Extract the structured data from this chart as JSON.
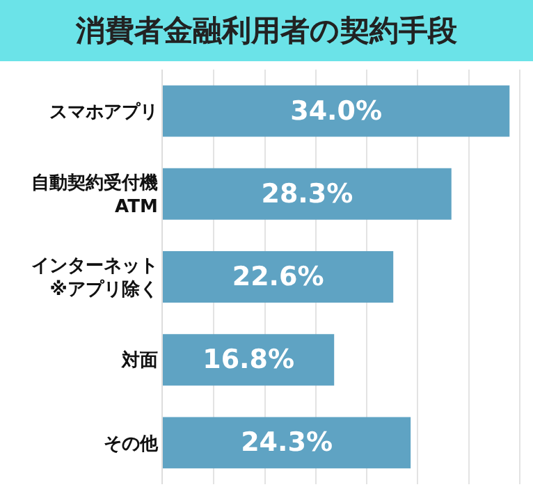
{
  "chart_data": {
    "type": "bar",
    "orientation": "horizontal",
    "title": "消費者金融利用者の契約手段",
    "categories": [
      "スマホアプリ",
      "自動契約受付機\nATM",
      "インターネット\n※アプリ除く",
      "対面",
      "その他"
    ],
    "values": [
      34.0,
      28.3,
      22.6,
      16.8,
      24.3
    ],
    "value_labels": [
      "34.0%",
      "28.3%",
      "22.6%",
      "16.8%",
      "24.3%"
    ],
    "color": "#5fa3c3",
    "xlim": [
      0,
      36.3
    ],
    "xticks": [
      {
        "value": 0,
        "label": null
      },
      {
        "value": 5,
        "label": null
      },
      {
        "value": 10,
        "label": null
      },
      {
        "value": 15,
        "label": null
      },
      {
        "value": 20,
        "label": null
      },
      {
        "value": 25,
        "label": null
      },
      {
        "value": 30,
        "label": null
      },
      {
        "value": 35,
        "label": null
      }
    ],
    "grid": "x",
    "tick_labels": "y"
  }
}
